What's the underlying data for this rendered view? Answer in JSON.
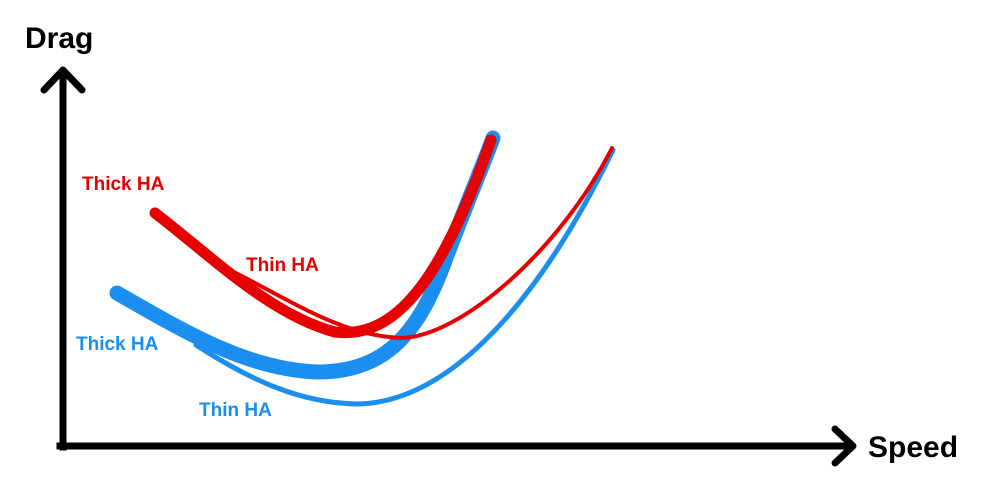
{
  "axes": {
    "y_label": "Drag",
    "x_label": "Speed"
  },
  "curves": {
    "red_thick": {
      "label": "Thick HA",
      "color": "#e60000"
    },
    "red_thin": {
      "label": "Thin HA",
      "color": "#e60000"
    },
    "blue_thick": {
      "label": "Thick HA",
      "color": "#1a8ff0"
    },
    "blue_thin": {
      "label": "Thin HA",
      "color": "#1a8ff0"
    }
  },
  "colors": {
    "axis": "#000000",
    "red": "#e60000",
    "blue": "#1a8ff0"
  }
}
